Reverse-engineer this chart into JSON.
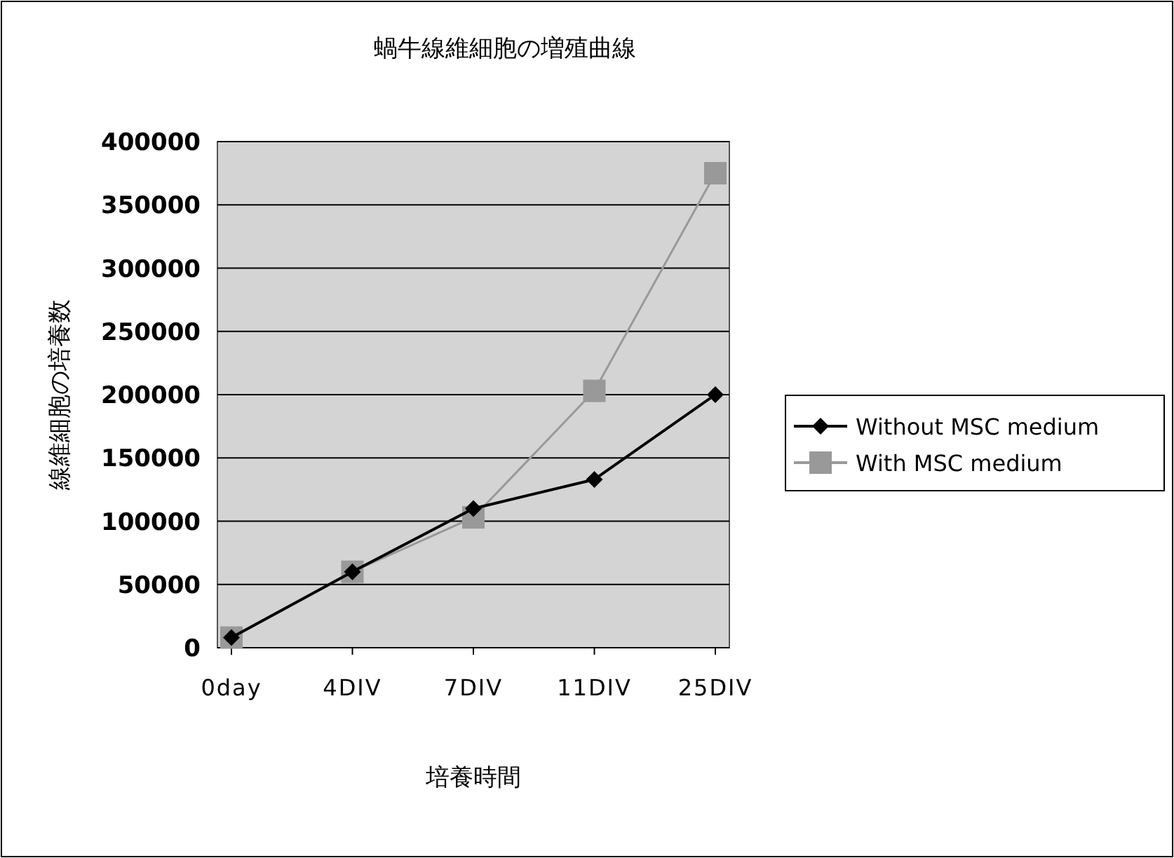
{
  "chart_data": {
    "type": "line",
    "title": "蝸牛線維細胞の増殖曲線",
    "xlabel": "培養時間",
    "ylabel": "線維細胞の培養数",
    "categories": [
      "0day",
      "4DIV",
      "7DIV",
      "11DIV",
      "25DIV"
    ],
    "series": [
      {
        "name": "Without MSC medium",
        "color": "#000000",
        "marker": "diamond",
        "values": [
          8000,
          60000,
          110000,
          133000,
          200000
        ]
      },
      {
        "name": "With MSC medium",
        "color": "#999999",
        "marker": "square",
        "values": [
          8000,
          60000,
          103000,
          203000,
          375000
        ]
      }
    ],
    "ylim": [
      0,
      400000
    ],
    "yticks": [
      0,
      50000,
      100000,
      150000,
      200000,
      250000,
      300000,
      350000,
      400000
    ],
    "grid": "y",
    "legend": "right"
  }
}
